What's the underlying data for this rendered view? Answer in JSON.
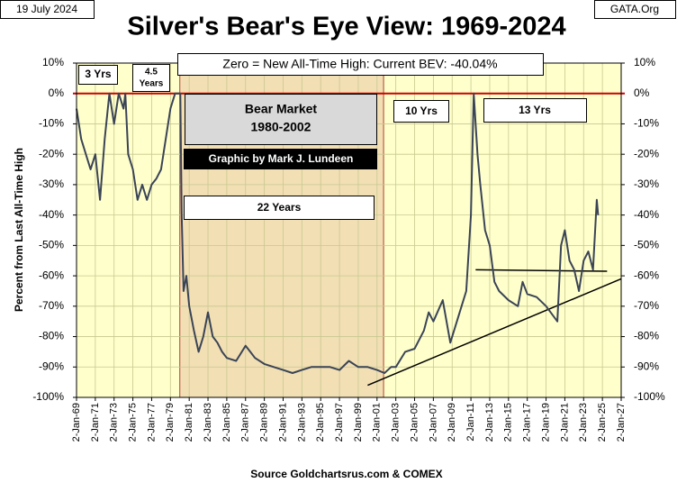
{
  "chart_data": {
    "type": "line",
    "title": "Silver's Bear's Eye View: 1969-2024",
    "date": "19 July 2024",
    "source_site": "GATA.Org",
    "y_label": "Percent from Last  All-Time  High",
    "x_label": "Source Goldchartsrus.com  & COMEX",
    "annotations": {
      "bev": "Zero = New All-Time High: Current BEV: -40.04%",
      "three_yrs": "3 Yrs",
      "four_half_yrs": [
        "4.5",
        "Years"
      ],
      "bear_market": [
        "Bear Market",
        "1980-2002"
      ],
      "credit": "Graphic by Mark J. Lundeen",
      "twenty_two_yrs": "22 Years",
      "ten_yrs": "10 Yrs",
      "thirteen_yrs": "13 Yrs"
    },
    "x": [
      1969.0,
      1969.5,
      1970.0,
      1970.5,
      1971.0,
      1971.5,
      1972.0,
      1972.5,
      1973.0,
      1973.5,
      1974.0,
      1974.2,
      1974.5,
      1975.0,
      1975.5,
      1976.0,
      1976.5,
      1977.0,
      1977.5,
      1978.0,
      1978.5,
      1979.0,
      1979.5,
      1980.05,
      1980.2,
      1980.4,
      1980.7,
      1981.0,
      1981.5,
      1982.0,
      1982.5,
      1983.0,
      1983.5,
      1984.0,
      1984.5,
      1985.0,
      1986.0,
      1987.0,
      1987.5,
      1988.0,
      1989.0,
      1990.0,
      1991.0,
      1992.0,
      1993.0,
      1994.0,
      1995.0,
      1996.0,
      1997.0,
      1998.0,
      1999.0,
      2000.0,
      2001.0,
      2001.8,
      2002.5,
      2003.0,
      2004.0,
      2005.0,
      2006.0,
      2006.5,
      2007.0,
      2008.0,
      2008.8,
      2009.5,
      2010.0,
      2010.5,
      2011.0,
      2011.3,
      2011.7,
      2012.0,
      2012.5,
      2013.0,
      2013.5,
      2014.0,
      2015.0,
      2016.0,
      2016.5,
      2017.0,
      2018.0,
      2019.0,
      2020.2,
      2020.6,
      2021.0,
      2021.5,
      2022.0,
      2022.5,
      2023.0,
      2023.5,
      2024.0,
      2024.4,
      2024.55
    ],
    "series": [
      {
        "name": "Silver BEV",
        "color": "#3a4456",
        "values": [
          -5,
          -15,
          -20,
          -25,
          -20,
          -35,
          -15,
          0,
          -10,
          0,
          -5,
          0,
          -20,
          -25,
          -35,
          -30,
          -35,
          -30,
          -28,
          -25,
          -15,
          -5,
          0,
          0,
          -40,
          -65,
          -60,
          -70,
          -78,
          -85,
          -80,
          -72,
          -80,
          -82,
          -85,
          -87,
          -88,
          -83,
          -85,
          -87,
          -89,
          -90,
          -91,
          -92,
          -91,
          -90,
          -90,
          -90,
          -91,
          -88,
          -90,
          -90,
          -91,
          -92,
          -90,
          -90,
          -85,
          -84,
          -78,
          -72,
          -75,
          -68,
          -82,
          -75,
          -70,
          -65,
          -40,
          0,
          -20,
          -30,
          -45,
          -50,
          -62,
          -65,
          -68,
          -70,
          -62,
          -66,
          -67,
          -70,
          -75,
          -50,
          -45,
          -55,
          -58,
          -65,
          -55,
          -52,
          -58,
          -35,
          -40.04
        ]
      }
    ],
    "xlim": [
      1969,
      2027
    ],
    "ylim": [
      -100,
      10
    ],
    "yticks": [
      {
        "value": 10,
        "label": "10%"
      },
      {
        "value": 0,
        "label": "0%"
      },
      {
        "value": -10,
        "label": "-10%"
      },
      {
        "value": -20,
        "label": "-20%"
      },
      {
        "value": -30,
        "label": "-30%"
      },
      {
        "value": -40,
        "label": "-40%"
      },
      {
        "value": -50,
        "label": "-50%"
      },
      {
        "value": -60,
        "label": "-60%"
      },
      {
        "value": -70,
        "label": "-70%"
      },
      {
        "value": -80,
        "label": "-80%"
      },
      {
        "value": -90,
        "label": "-90%"
      },
      {
        "value": -100,
        "label": "-100%"
      }
    ],
    "xticks": [
      {
        "value": 1969,
        "label": "2-Jan-69"
      },
      {
        "value": 1971,
        "label": "2-Jan-71"
      },
      {
        "value": 1973,
        "label": "2-Jan-73"
      },
      {
        "value": 1975,
        "label": "2-Jan-75"
      },
      {
        "value": 1977,
        "label": "2-Jan-77"
      },
      {
        "value": 1979,
        "label": "2-Jan-79"
      },
      {
        "value": 1981,
        "label": "2-Jan-81"
      },
      {
        "value": 1983,
        "label": "2-Jan-83"
      },
      {
        "value": 1985,
        "label": "2-Jan-85"
      },
      {
        "value": 1987,
        "label": "2-Jan-87"
      },
      {
        "value": 1989,
        "label": "2-Jan-89"
      },
      {
        "value": 1991,
        "label": "2-Jan-91"
      },
      {
        "value": 1993,
        "label": "2-Jan-93"
      },
      {
        "value": 1995,
        "label": "2-Jan-95"
      },
      {
        "value": 1997,
        "label": "2-Jan-97"
      },
      {
        "value": 1999,
        "label": "2-Jan-99"
      },
      {
        "value": 2001,
        "label": "2-Jan-01"
      },
      {
        "value": 2003,
        "label": "2-Jan-03"
      },
      {
        "value": 2005,
        "label": "2-Jan-05"
      },
      {
        "value": 2007,
        "label": "2-Jan-07"
      },
      {
        "value": 2009,
        "label": "2-Jan-09"
      },
      {
        "value": 2011,
        "label": "2-Jan-11"
      },
      {
        "value": 2013,
        "label": "2-Jan-13"
      },
      {
        "value": 2015,
        "label": "2-Jan-15"
      },
      {
        "value": 2017,
        "label": "2-Jan-17"
      },
      {
        "value": 2019,
        "label": "2-Jan-19"
      },
      {
        "value": 2021,
        "label": "2-Jan-21"
      },
      {
        "value": 2023,
        "label": "2-Jan-23"
      },
      {
        "value": 2025,
        "label": "2-Jan-25"
      },
      {
        "value": 2027,
        "label": "2-Jan-27"
      }
    ],
    "grid": true,
    "plot_background": "#ffffcc",
    "reference_line": {
      "value": 0,
      "color": "#cc0000"
    },
    "shaded_span": {
      "x": [
        1980,
        2001.7
      ],
      "color": "#f2dfb4",
      "edge_color": "#b04030"
    },
    "trend_lines": [
      {
        "x": [
          2000.0,
          2027.0
        ],
        "y": [
          -96,
          -61
        ],
        "color": "#000000"
      },
      {
        "x": [
          2011.5,
          2025.5
        ],
        "y": [
          -58,
          -58.5
        ],
        "color": "#000000"
      }
    ]
  }
}
